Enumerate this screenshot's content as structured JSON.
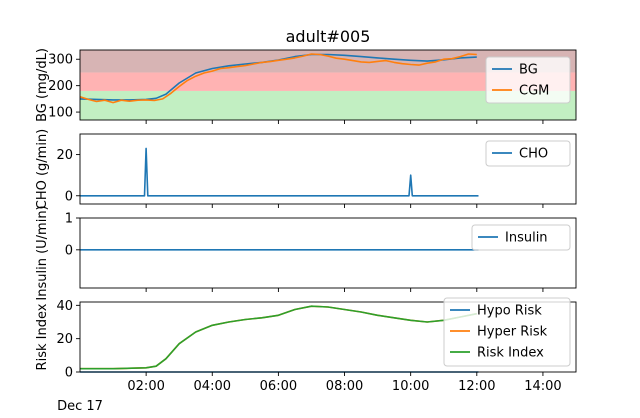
{
  "figure": {
    "title": "adult#005",
    "date_label": "Dec 17"
  },
  "colors": {
    "blue": "#1f77b4",
    "orange": "#ff7f0e",
    "green": "#2ca02c",
    "band_low_green": "#c2efc2",
    "band_mid_red": "#ffb3b3",
    "band_high_red": "#d7b4b4"
  },
  "x_axis": {
    "start_hour": 0,
    "end_hour": 15,
    "ticks": [
      {
        "hour": 2,
        "label": "02:00"
      },
      {
        "hour": 4,
        "label": "04:00"
      },
      {
        "hour": 6,
        "label": "06:00"
      },
      {
        "hour": 8,
        "label": "08:00"
      },
      {
        "hour": 10,
        "label": "10:00"
      },
      {
        "hour": 12,
        "label": "12:00"
      },
      {
        "hour": 14,
        "label": "14:00"
      }
    ]
  },
  "chart_data": [
    {
      "type": "line",
      "ylabel": "BG (mg/dL)",
      "ylim": [
        70,
        335
      ],
      "yticks": [
        100,
        200,
        300
      ],
      "bands": [
        {
          "from": 70,
          "to": 180,
          "color": "#c2efc2"
        },
        {
          "from": 180,
          "to": 250,
          "color": "#ffb3b3"
        },
        {
          "from": 250,
          "to": 335,
          "color": "#d7b4b4"
        }
      ],
      "legend": "upper right",
      "series": [
        {
          "name": "BG",
          "color": "#1f77b4",
          "x": [
            0,
            0.5,
            1,
            1.5,
            2,
            2.3,
            2.6,
            3,
            3.5,
            4,
            4.5,
            5,
            5.5,
            6,
            6.5,
            7,
            7.5,
            8,
            8.5,
            9,
            9.5,
            10,
            10.5,
            11,
            11.5,
            12
          ],
          "y": [
            150,
            148,
            146,
            146,
            148,
            152,
            168,
            210,
            248,
            265,
            275,
            282,
            288,
            297,
            310,
            318,
            318,
            315,
            310,
            305,
            300,
            296,
            293,
            298,
            305,
            308
          ]
        },
        {
          "name": "CGM",
          "color": "#ff7f0e",
          "x": [
            0,
            0.25,
            0.5,
            0.75,
            1,
            1.25,
            1.5,
            1.75,
            2,
            2.25,
            2.5,
            2.75,
            3,
            3.25,
            3.5,
            3.75,
            4,
            4.25,
            4.5,
            4.75,
            5,
            5.25,
            5.5,
            5.75,
            6,
            6.25,
            6.5,
            6.75,
            7,
            7.25,
            7.5,
            7.75,
            8,
            8.25,
            8.5,
            8.75,
            9,
            9.25,
            9.5,
            9.75,
            10,
            10.25,
            10.5,
            10.75,
            11,
            11.25,
            11.5,
            11.75,
            12
          ],
          "y": [
            158,
            148,
            140,
            145,
            136,
            145,
            141,
            145,
            146,
            144,
            150,
            171,
            197,
            220,
            236,
            248,
            255,
            265,
            268,
            272,
            276,
            282,
            288,
            291,
            296,
            300,
            305,
            312,
            320,
            318,
            312,
            304,
            300,
            295,
            290,
            288,
            292,
            295,
            288,
            283,
            280,
            278,
            285,
            290,
            300,
            302,
            310,
            320,
            318
          ]
        }
      ]
    },
    {
      "type": "line",
      "ylabel": "CHO (g/min)",
      "ylim": [
        -4,
        30
      ],
      "yticks": [
        0,
        20
      ],
      "legend": "upper right",
      "series": [
        {
          "name": "CHO",
          "color": "#1f77b4",
          "x": [
            0,
            1.95,
            2.0,
            2.05,
            9.95,
            10.0,
            10.05,
            12.05
          ],
          "y": [
            0,
            0,
            23,
            0,
            0,
            10,
            0,
            0
          ]
        }
      ]
    },
    {
      "type": "line",
      "ylabel": "Insulin (U/min)",
      "ylim": [
        -1.2,
        1
      ],
      "yticks": [
        0,
        1
      ],
      "legend": "upper right",
      "series": [
        {
          "name": "Insulin",
          "color": "#1f77b4",
          "x": [
            0,
            12.05
          ],
          "y": [
            0,
            0
          ]
        }
      ]
    },
    {
      "type": "line",
      "ylabel": "Risk Index",
      "ylim": [
        0,
        42
      ],
      "yticks": [
        0,
        20,
        40
      ],
      "legend": "upper right",
      "series": [
        {
          "name": "Hypo Risk",
          "color": "#1f77b4",
          "x": [
            0,
            12.05
          ],
          "y": [
            0,
            0
          ]
        },
        {
          "name": "Hyper Risk",
          "color": "#ff7f0e",
          "x": [
            0,
            1,
            2,
            2.3,
            2.6,
            3,
            3.5,
            4,
            4.5,
            5,
            5.5,
            6,
            6.5,
            7,
            7.5,
            8,
            8.5,
            9,
            9.5,
            10,
            10.5,
            11,
            11.5,
            12
          ],
          "y": [
            2,
            2,
            2.5,
            3.5,
            8,
            17,
            24,
            28,
            30,
            31.5,
            32.5,
            34,
            37.5,
            39.5,
            39,
            37.5,
            36,
            34,
            32.5,
            31,
            30,
            31,
            33,
            35
          ]
        },
        {
          "name": "Risk Index",
          "color": "#2ca02c",
          "x": [
            0,
            1,
            2,
            2.3,
            2.6,
            3,
            3.5,
            4,
            4.5,
            5,
            5.5,
            6,
            6.5,
            7,
            7.5,
            8,
            8.5,
            9,
            9.5,
            10,
            10.5,
            11,
            11.5,
            12
          ],
          "y": [
            2,
            2,
            2.5,
            3.5,
            8,
            17,
            24,
            28,
            30,
            31.5,
            32.5,
            34,
            37.5,
            39.5,
            39,
            37.5,
            36,
            34,
            32.5,
            31,
            30,
            31,
            33,
            35
          ]
        }
      ]
    }
  ]
}
